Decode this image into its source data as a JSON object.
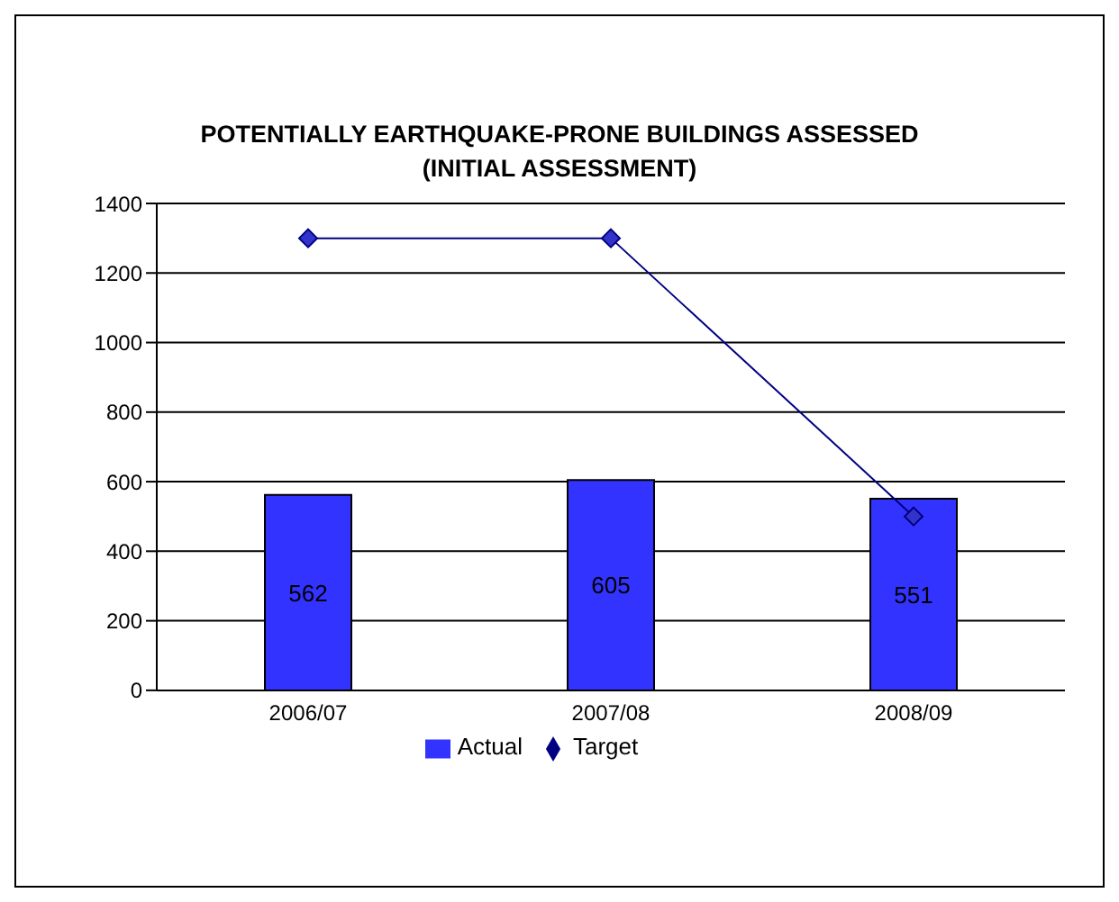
{
  "chart_data": {
    "type": "bar",
    "title": "POTENTIALLY EARTHQUAKE-PRONE BUILDINGS ASSESSED\n(INITIAL ASSESSMENT)",
    "categories": [
      "2006/07",
      "2007/08",
      "2008/09"
    ],
    "series": [
      {
        "name": "Actual",
        "color": "#3333ff",
        "values": [
          562,
          605,
          551
        ],
        "value_labels": [
          "562",
          "605",
          "551"
        ]
      },
      {
        "name": "Target",
        "type": "line",
        "color": "#000080",
        "values": [
          1300,
          1300,
          500
        ]
      }
    ],
    "ylim": [
      0,
      1400
    ],
    "yticks": [
      0,
      200,
      400,
      600,
      800,
      1000,
      1200,
      1400
    ],
    "grid": "y",
    "legend": "bottom",
    "marker": "diamond",
    "line_style": "solid"
  }
}
